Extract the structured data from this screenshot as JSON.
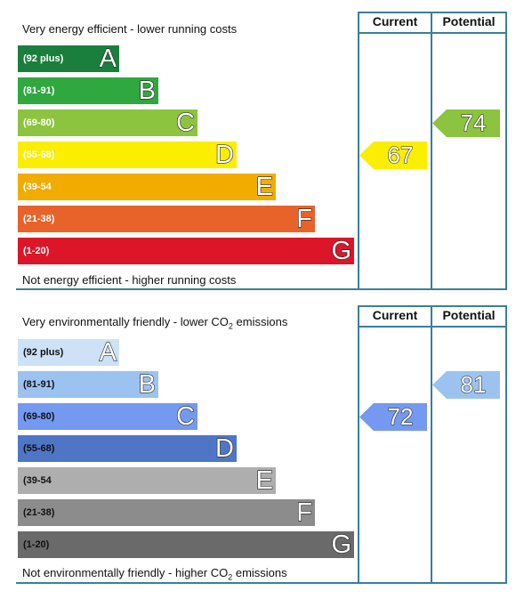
{
  "colors": {
    "frame": "#3a7f9c"
  },
  "chart_data": [
    {
      "type": "table",
      "kind": "energy-efficiency-rating",
      "headers": {
        "current": "Current",
        "potential": "Potential"
      },
      "top_caption": "Very energy efficient - lower running costs",
      "bottom_caption": "Not energy efficient - higher running costs",
      "bands": [
        {
          "letter": "A",
          "range": "(92 plus)",
          "color": "#1a7f3c"
        },
        {
          "letter": "B",
          "range": "(81-91)",
          "color": "#2fa83e"
        },
        {
          "letter": "C",
          "range": "(69-80)",
          "color": "#8cc43f"
        },
        {
          "letter": "D",
          "range": "(55-68)",
          "color": "#fbee00"
        },
        {
          "letter": "E",
          "range": "(39-54",
          "color": "#f2ac00"
        },
        {
          "letter": "F",
          "range": "(21-38)",
          "color": "#e8632a"
        },
        {
          "letter": "G",
          "range": "(1-20)",
          "color": "#dc1528"
        }
      ],
      "current": {
        "value": 67,
        "band": "D",
        "color": "#fbee00"
      },
      "potential": {
        "value": 74,
        "band": "C",
        "color": "#8cc43f"
      }
    },
    {
      "type": "table",
      "kind": "environmental-impact-rating",
      "headers": {
        "current": "Current",
        "potential": "Potential"
      },
      "top_caption": "Very environmentally friendly - lower CO2 emissions",
      "bottom_caption": "Not environmentally friendly - higher CO2 emissions",
      "bands": [
        {
          "letter": "A",
          "range": "(92 plus)",
          "color": "#cde1f7"
        },
        {
          "letter": "B",
          "range": "(81-91)",
          "color": "#9cc3f0"
        },
        {
          "letter": "C",
          "range": "(69-80)",
          "color": "#7599f1"
        },
        {
          "letter": "D",
          "range": "(55-68)",
          "color": "#4f76c6"
        },
        {
          "letter": "E",
          "range": "(39-54",
          "color": "#aeaeae"
        },
        {
          "letter": "F",
          "range": "(21-38)",
          "color": "#8c8c8c"
        },
        {
          "letter": "G",
          "range": "(1-20)",
          "color": "#6a6a6a"
        }
      ],
      "current": {
        "value": 72,
        "band": "C",
        "color": "#7599f1"
      },
      "potential": {
        "value": 81,
        "band": "B",
        "color": "#9cc3f0"
      }
    }
  ],
  "energy": {
    "top_caption": "Very energy efficient - lower running costs",
    "bottom_caption": "Not energy efficient - higher running costs"
  },
  "env": {
    "top_caption_main": "Very environmentally friendly - lower CO",
    "top_caption_sub": "2",
    "top_caption_end": " emissions",
    "bottom_caption_main": "Not environmentally friendly - higher CO",
    "bottom_caption_sub": "2",
    "bottom_caption_end": " emissions"
  }
}
